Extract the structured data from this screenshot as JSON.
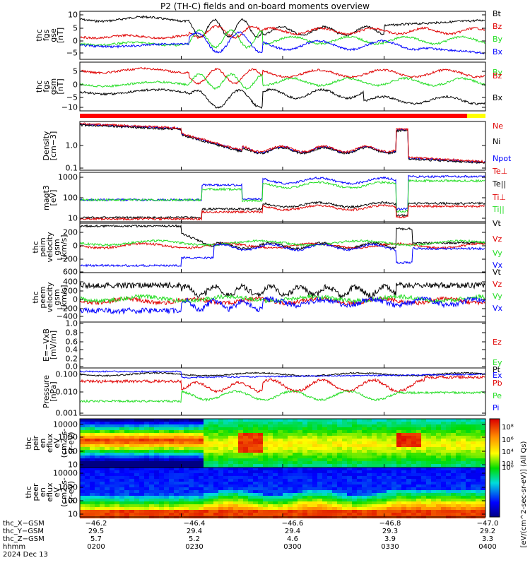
{
  "title": "P2 (TH-C) fields and on-board moments overview",
  "colors": {
    "black": "#000000",
    "red": "#e00000",
    "green": "#22dd22",
    "blue": "#0000ff",
    "bar_red": "#ff0000",
    "bar_yellow": "#ffff00"
  },
  "chart_data": [
    {
      "type": "line",
      "panel": "fgs_gse",
      "ylabel_lines": [
        "thc",
        "fgs",
        "gse",
        "[nT]"
      ],
      "yticks": [
        "10",
        "5",
        "0",
        "−5"
      ],
      "ylim": [
        -8,
        11
      ],
      "series": [
        {
          "name": "Bt",
          "color": "black"
        },
        {
          "name": "Bz",
          "color": "red"
        },
        {
          "name": "By",
          "color": "green"
        },
        {
          "name": "Bx",
          "color": "blue"
        }
      ]
    },
    {
      "type": "line",
      "panel": "fgs_gsm",
      "ylabel_lines": [
        "thc",
        "fgs",
        "gsm",
        "[nT]"
      ],
      "yticks": [
        "5",
        "0",
        "−5",
        "−10"
      ],
      "ylim": [
        -13,
        8
      ],
      "series": [
        {
          "name": "By",
          "color": "green"
        },
        {
          "name": "Bz",
          "color": "red"
        },
        {
          "name": "Bx",
          "color": "black"
        }
      ]
    },
    {
      "type": "line",
      "panel": "density",
      "ylabel_lines": [
        "Density",
        "[cm−3]"
      ],
      "yticks": [
        "1.0",
        "0.1"
      ],
      "scale": "log",
      "series": [
        {
          "name": "Ne",
          "color": "red"
        },
        {
          "name": "Ni",
          "color": "black"
        },
        {
          "name": "Npot",
          "color": "blue"
        }
      ]
    },
    {
      "type": "line",
      "panel": "temperature",
      "ylabel_lines": [
        "magt3",
        "[eV]"
      ],
      "yticks": [
        "1000",
        "100",
        "10"
      ],
      "scale": "log",
      "series": [
        {
          "name": "Te⊥",
          "color": "red"
        },
        {
          "name": "Te||",
          "color": "black"
        },
        {
          "name": "Ti⊥",
          "color": "red"
        },
        {
          "name": "Ti||",
          "color": "green"
        }
      ]
    },
    {
      "type": "line",
      "panel": "peim_velocity",
      "ylabel_lines": [
        "thc",
        "peim",
        "velocity",
        "gsm",
        "[km/s]"
      ],
      "yticks": [
        "200",
        "0",
        "−200"
      ],
      "ylim": [
        -320,
        340
      ],
      "series": [
        {
          "name": "Vt",
          "color": "black"
        },
        {
          "name": "Vz",
          "color": "red"
        },
        {
          "name": "Vy",
          "color": "green"
        },
        {
          "name": "Vx",
          "color": "blue"
        }
      ]
    },
    {
      "type": "line",
      "panel": "peem_velocity",
      "ylabel_lines": [
        "thc",
        "peem",
        "velocity",
        "gsm",
        "[km/s]"
      ],
      "yticks": [
        "600",
        "400",
        "200",
        "0",
        "−200",
        "−400"
      ],
      "ylim": [
        -430,
        640
      ],
      "series": [
        {
          "name": "Vt",
          "color": "black"
        },
        {
          "name": "Vz",
          "color": "red"
        },
        {
          "name": "Vy",
          "color": "green"
        },
        {
          "name": "Vx",
          "color": "blue"
        }
      ]
    },
    {
      "type": "line",
      "panel": "efield",
      "ylabel_lines": [
        "E=−VxB",
        "[mV/m]"
      ],
      "yticks": [
        "1.0",
        "0.8",
        "0.6",
        "0.4",
        "0.2",
        "0.0"
      ],
      "ylim": [
        -0.05,
        1.0
      ],
      "series": [
        {
          "name": "Ez",
          "color": "red"
        },
        {
          "name": "Ey",
          "color": "green"
        },
        {
          "name": "Ex",
          "color": "blue"
        }
      ]
    },
    {
      "type": "line",
      "panel": "pressure",
      "ylabel_lines": [
        "Pressure",
        "[nPa]"
      ],
      "yticks": [
        "0.100",
        "0.010",
        "0.001"
      ],
      "scale": "log",
      "series": [
        {
          "name": "Pt",
          "color": "black"
        },
        {
          "name": "Pb",
          "color": "red"
        },
        {
          "name": "Pe",
          "color": "green"
        },
        {
          "name": "Pi",
          "color": "blue"
        }
      ]
    },
    {
      "type": "heatmap",
      "panel": "peir_eflux",
      "ylabel_lines": [
        "thc",
        "peir",
        "en",
        "eflux",
        "eV",
        "(cm2-s-",
        "sr-eV)"
      ],
      "yticks": [
        "10000",
        "1000",
        "100",
        "10"
      ],
      "scale": "log"
    },
    {
      "type": "heatmap",
      "panel": "peer_eflux",
      "ylabel_lines": [
        "thc",
        "peer",
        "en",
        "eflux",
        "eV",
        "(cm2-s-",
        "sr-eV)"
      ],
      "yticks": [
        "10000",
        "1000",
        "100",
        "10"
      ],
      "scale": "log"
    }
  ],
  "colorbar": {
    "ticks": [
      "10⁸",
      "10⁶",
      "10⁴",
      "10²",
      "10⁰"
    ],
    "title": "[eV/(cm^2-sec-sr-eV)] (All Qs)",
    "lower_title": "[eV/(cm^2-sec-sr-eV)]"
  },
  "xaxis": {
    "row_labels": [
      "thc_X−GSM",
      "thc_Y−GSM",
      "thc_Z−GSM",
      "hhmm",
      "2024 Dec 13"
    ],
    "columns": [
      {
        "x": "−46.2",
        "y": "29.5",
        "z": "5.7",
        "hhmm": "0200"
      },
      {
        "x": "−46.4",
        "y": "29.4",
        "z": "5.2",
        "hhmm": "0230"
      },
      {
        "x": "−46.6",
        "y": "29.4",
        "z": "4.6",
        "hhmm": "0300"
      },
      {
        "x": "−46.8",
        "y": "29.3",
        "z": "3.9",
        "hhmm": "0330"
      },
      {
        "x": "−47.0",
        "y": "29.2",
        "z": "3.3",
        "hhmm": "0400"
      }
    ]
  }
}
